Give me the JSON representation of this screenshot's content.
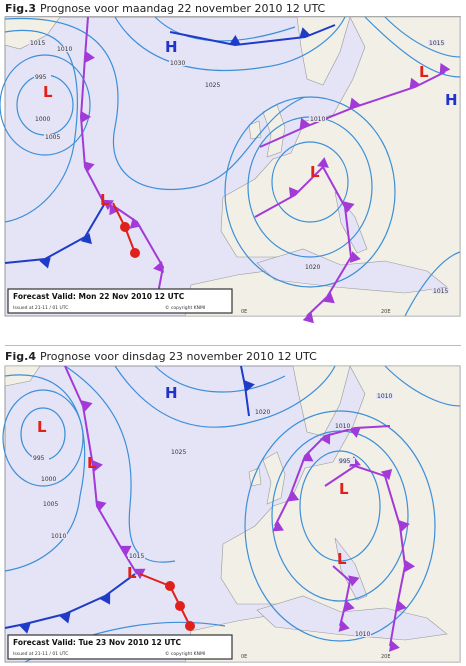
{
  "figures": [
    {
      "label": "Fig.3",
      "caption": "Prognose voor maandag 22 november 2010 12 UTC",
      "map": {
        "forecast_valid": "Forecast Valid:  Mon 22 Nov 2010 12 UTC",
        "issued": "Issued at 21-11 / 01 UTC",
        "copyright": "© copyright KNMI",
        "centers": [
          "H",
          "L",
          "L",
          "L",
          "L",
          "H"
        ],
        "isobar_labels": [
          "1015",
          "1010",
          "1030",
          "1025",
          "995",
          "1000",
          "1005",
          "1010",
          "1015",
          "1020",
          "1015"
        ],
        "lon_labels": [
          "0E",
          "20E"
        ]
      }
    },
    {
      "label": "Fig.4",
      "caption": "Prognose voor dinsdag 23 november 2010 12 UTC",
      "map": {
        "forecast_valid": "Forecast Valid:  Tue 23 Nov 2010 12 UTC",
        "issued": "Issued at 21-11 / 01 UTC",
        "copyright": "© copyright KNMI",
        "centers": [
          "H",
          "L",
          "L",
          "L",
          "L",
          "L"
        ],
        "isobar_labels": [
          "995",
          "1000",
          "1005",
          "1010",
          "1025",
          "1020",
          "1010",
          "995",
          "1010",
          "1015",
          "1010"
        ],
        "lon_labels": [
          "0E",
          "20E"
        ]
      }
    }
  ]
}
